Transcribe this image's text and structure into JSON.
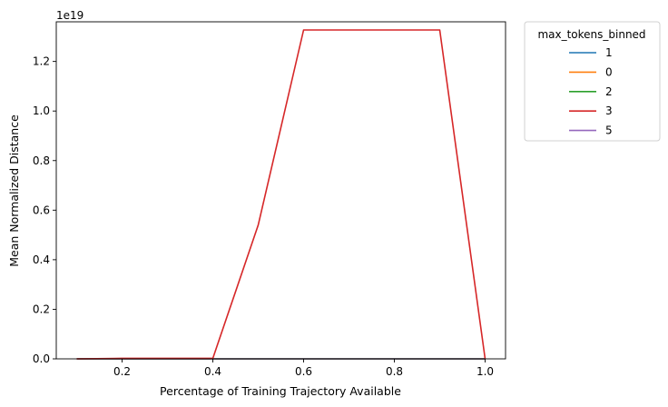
{
  "chart_data": {
    "type": "line",
    "title": "",
    "xlabel": "Percentage of Training Trajectory Available",
    "ylabel": "Mean Normalized Distance",
    "offset_text": "1e19",
    "y_scale": 1e+19,
    "xlim": [
      0.055,
      1.045
    ],
    "ylim": [
      0,
      1.36
    ],
    "x_ticks": [
      0.2,
      0.4,
      0.6,
      0.8,
      1.0
    ],
    "x_tick_labels": [
      "0.2",
      "0.4",
      "0.6",
      "0.8",
      "1.0"
    ],
    "y_ticks": [
      0,
      0.2,
      0.4,
      0.6,
      0.8,
      1.0,
      1.2
    ],
    "y_tick_labels": [
      "0.0",
      "0.2",
      "0.4",
      "0.6",
      "0.8",
      "1.0",
      "1.2"
    ],
    "grid": false,
    "legend": {
      "title": "max_tokens_binned",
      "placement": "outside-upper-right"
    },
    "x": [
      0.1,
      0.2,
      0.3,
      0.4,
      0.5,
      0.6,
      0.7,
      0.8,
      0.9,
      1.0
    ],
    "series": [
      {
        "name": "1",
        "color": "#1f77b4",
        "values": [
          0,
          0,
          0,
          0,
          0,
          0,
          0,
          0,
          0,
          0
        ]
      },
      {
        "name": "0",
        "color": "#ff7f0e",
        "values": [
          0,
          0,
          0,
          0,
          0,
          0,
          0,
          0,
          0,
          0
        ]
      },
      {
        "name": "2",
        "color": "#2ca02c",
        "values": [
          0,
          0,
          0,
          0,
          0,
          0,
          0,
          0,
          0,
          0
        ]
      },
      {
        "name": "5",
        "color": "#9467bd",
        "values": [
          0,
          0,
          0,
          0,
          0,
          0,
          0,
          0,
          0,
          0
        ]
      },
      {
        "name": "3",
        "color": "#d62728",
        "values": [
          0,
          0.002,
          0.002,
          0.002,
          0.54,
          1.327,
          1.327,
          1.327,
          1.327,
          0
        ]
      }
    ],
    "legend_order": [
      "1",
      "0",
      "2",
      "3",
      "5"
    ]
  }
}
